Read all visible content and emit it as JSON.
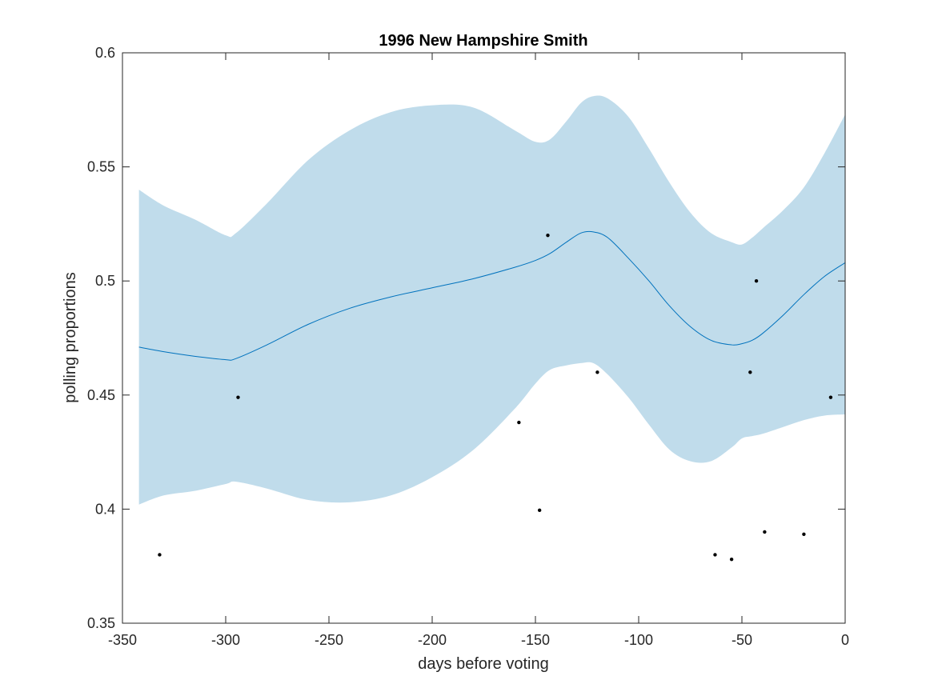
{
  "chart_data": {
    "type": "line",
    "title": "1996 New Hampshire Smith",
    "xlabel": "days before voting",
    "ylabel": "polling proportions",
    "xlim": [
      -350,
      0
    ],
    "ylim": [
      0.35,
      0.6
    ],
    "xticks": [
      -350,
      -300,
      -250,
      -200,
      -150,
      -100,
      -50,
      0
    ],
    "xtick_labels": [
      "-350",
      "-300",
      "-250",
      "-200",
      "-150",
      "-100",
      "-50",
      "0"
    ],
    "yticks": [
      0.35,
      0.4,
      0.45,
      0.5,
      0.55,
      0.6
    ],
    "ytick_labels": [
      "0.35",
      "0.4",
      "0.45",
      "0.5",
      "0.55",
      "0.6"
    ],
    "grid": false,
    "colors": {
      "band": "#c0dceb",
      "line": "#0072bd",
      "points": "#000000",
      "axes": "#262626"
    },
    "fit": {
      "x": [
        -342,
        -330,
        -315,
        -300,
        -295,
        -280,
        -260,
        -240,
        -220,
        -200,
        -180,
        -160,
        -150,
        -143,
        -135,
        -128,
        -122,
        -115,
        -105,
        -95,
        -85,
        -75,
        -65,
        -55,
        -50,
        -45,
        -40,
        -30,
        -20,
        -10,
        0
      ],
      "mean": [
        0.471,
        0.469,
        0.467,
        0.4655,
        0.466,
        0.472,
        0.481,
        0.488,
        0.493,
        0.497,
        0.501,
        0.506,
        0.509,
        0.512,
        0.517,
        0.521,
        0.5215,
        0.519,
        0.51,
        0.5,
        0.489,
        0.48,
        0.474,
        0.472,
        0.4725,
        0.474,
        0.477,
        0.485,
        0.494,
        0.502,
        0.508
      ],
      "upper": [
        0.54,
        0.533,
        0.527,
        0.52,
        0.521,
        0.534,
        0.553,
        0.566,
        0.574,
        0.577,
        0.576,
        0.566,
        0.561,
        0.562,
        0.57,
        0.578,
        0.581,
        0.58,
        0.572,
        0.558,
        0.543,
        0.53,
        0.521,
        0.517,
        0.516,
        0.519,
        0.523,
        0.531,
        0.541,
        0.556,
        0.573
      ],
      "lower": [
        0.402,
        0.406,
        0.408,
        0.411,
        0.412,
        0.409,
        0.404,
        0.403,
        0.406,
        0.414,
        0.426,
        0.444,
        0.455,
        0.461,
        0.463,
        0.464,
        0.464,
        0.459,
        0.449,
        0.437,
        0.426,
        0.421,
        0.421,
        0.427,
        0.431,
        0.432,
        0.433,
        0.436,
        0.439,
        0.441,
        0.4415
      ]
    },
    "points": {
      "x": [
        -332,
        -294,
        -158,
        -148,
        -144,
        -120,
        -63,
        -55,
        -46,
        -43,
        -39,
        -20,
        -7
      ],
      "y": [
        0.38,
        0.449,
        0.438,
        0.3995,
        0.52,
        0.46,
        0.38,
        0.378,
        0.46,
        0.5,
        0.39,
        0.389,
        0.449
      ]
    }
  }
}
